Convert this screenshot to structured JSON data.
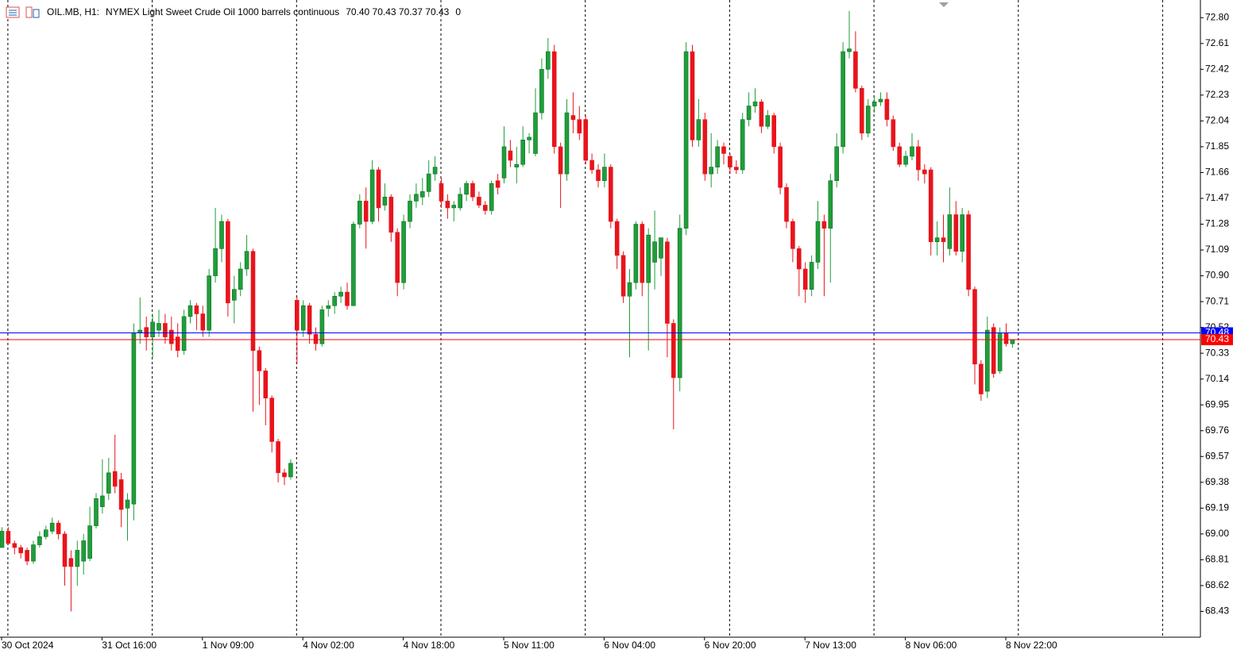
{
  "chart_data": {
    "type": "candlestick",
    "header": {
      "symbol": "OIL.MB, H1:",
      "description": "NYMEX Light Sweet Crude Oil 1000 barrels continuous",
      "ohlc": "70.40 70.43 70.37 70.43",
      "volume": "0"
    },
    "categories": [
      "30 Oct 2024",
      null,
      null,
      null,
      null,
      null,
      null,
      null,
      null,
      null,
      null,
      null,
      null,
      null,
      null,
      null,
      "31 Oct 16:00",
      null,
      null,
      null,
      null,
      null,
      null,
      null,
      null,
      null,
      null,
      null,
      null,
      null,
      null,
      null,
      "1 Nov 09:00",
      null,
      null,
      null,
      null,
      null,
      null,
      null,
      null,
      null,
      null,
      null,
      null,
      null,
      null,
      null,
      "4 Nov 02:00",
      null,
      null,
      null,
      null,
      null,
      null,
      null,
      null,
      null,
      null,
      null,
      null,
      null,
      null,
      null,
      "4 Nov 18:00",
      null,
      null,
      null,
      null,
      null,
      null,
      null,
      null,
      null,
      null,
      null,
      null,
      null,
      null,
      null,
      "5 Nov 11:00",
      null,
      null,
      null,
      null,
      null,
      null,
      null,
      null,
      null,
      null,
      null,
      null,
      null,
      null,
      null,
      "6 Nov 04:00",
      null,
      null,
      null,
      null,
      null,
      null,
      null,
      null,
      null,
      null,
      null,
      null,
      null,
      null,
      null,
      "6 Nov 20:00",
      null,
      null,
      null,
      null,
      null,
      null,
      null,
      null,
      null,
      null,
      null,
      null,
      null,
      null,
      null,
      "7 Nov 13:00",
      null,
      null,
      null,
      null,
      null,
      null,
      null,
      null,
      null,
      null,
      null,
      null,
      null,
      null,
      null,
      "8 Nov 06:00",
      null,
      null,
      null,
      null,
      null,
      null,
      null,
      null,
      null,
      null,
      null,
      null,
      null,
      null,
      null,
      "8 Nov 22:00",
      null
    ],
    "open": [
      68.9,
      69.02,
      68.93,
      68.9,
      68.88,
      68.8,
      68.92,
      68.98,
      69.02,
      69.08,
      69.0,
      68.82,
      68.76,
      68.8,
      68.82,
      69.06,
      69.2,
      69.3,
      69.46,
      69.4,
      69.19,
      69.22,
      70.48,
      70.52,
      70.45,
      70.5,
      70.55,
      70.5,
      70.45,
      70.35,
      70.6,
      70.68,
      70.62,
      70.5,
      70.9,
      71.1,
      71.3,
      70.72,
      70.8,
      70.95,
      71.08,
      70.35,
      70.2,
      70.0,
      69.68,
      69.45,
      69.42,
      70.72,
      70.5,
      70.68,
      70.47,
      70.4,
      70.66,
      70.68,
      70.75,
      70.78,
      70.68,
      71.28,
      71.45,
      71.3,
      71.68,
      71.42,
      71.48,
      71.22,
      70.85,
      71.3,
      71.45,
      71.48,
      71.52,
      71.65,
      71.58,
      71.45,
      71.4,
      71.4,
      71.5,
      71.58,
      71.48,
      71.42,
      71.38,
      71.6,
      71.62,
      71.82,
      71.7,
      71.72,
      71.9,
      71.8,
      72.1,
      72.42,
      72.55,
      71.85,
      71.65,
      72.08,
      72.05,
      72.05,
      71.75,
      71.68,
      71.6,
      71.7,
      71.3,
      71.05,
      70.75,
      70.85,
      71.28,
      70.85,
      71.0,
      71.03,
      71.15,
      70.55,
      70.15,
      71.25,
      72.55,
      71.9,
      72.05,
      71.65,
      71.7,
      71.85,
      71.78,
      71.7,
      71.68,
      72.05,
      72.15,
      72.18,
      72.0,
      72.08,
      71.85,
      71.55,
      71.3,
      71.1,
      70.95,
      70.8,
      71.0,
      71.3,
      71.25,
      71.6,
      71.85,
      72.55,
      72.55,
      72.28,
      71.95,
      72.15,
      72.18,
      72.2,
      72.05,
      71.85,
      71.72,
      71.78,
      71.85,
      71.68,
      71.68,
      71.15,
      71.18,
      71.1,
      71.35,
      71.08,
      71.35,
      70.8,
      70.25,
      70.05,
      70.52,
      70.2,
      70.48,
      70.4
    ],
    "high": [
      69.05,
      69.05,
      68.95,
      68.92,
      68.9,
      68.95,
      69.02,
      69.06,
      69.12,
      69.1,
      69.02,
      68.88,
      68.95,
      69.0,
      69.2,
      69.3,
      69.55,
      69.56,
      69.73,
      69.45,
      69.3,
      70.55,
      70.74,
      70.6,
      70.62,
      70.65,
      70.62,
      70.6,
      70.55,
      70.65,
      70.72,
      70.7,
      70.68,
      70.95,
      71.4,
      71.35,
      71.32,
      70.9,
      71.0,
      71.2,
      71.1,
      70.38,
      70.22,
      70.02,
      69.7,
      69.48,
      69.55,
      70.75,
      70.72,
      70.7,
      70.52,
      70.68,
      70.72,
      70.78,
      70.82,
      70.85,
      71.3,
      71.5,
      71.55,
      71.75,
      71.7,
      71.58,
      71.5,
      71.25,
      71.35,
      71.5,
      71.58,
      71.62,
      71.75,
      71.78,
      71.62,
      71.5,
      71.45,
      71.55,
      71.6,
      71.6,
      71.52,
      71.45,
      71.6,
      71.65,
      72.0,
      71.9,
      71.85,
      72.0,
      71.95,
      72.28,
      72.5,
      72.65,
      72.6,
      71.88,
      72.2,
      72.25,
      72.15,
      72.08,
      71.8,
      71.72,
      71.8,
      71.72,
      71.32,
      71.08,
      70.95,
      71.3,
      71.3,
      71.25,
      71.38,
      71.18,
      71.18,
      70.58,
      71.35,
      72.62,
      72.6,
      72.2,
      72.1,
      71.95,
      71.9,
      71.88,
      71.8,
      71.75,
      72.1,
      72.25,
      72.28,
      72.2,
      72.12,
      72.1,
      71.88,
      71.58,
      71.32,
      71.12,
      71.0,
      71.05,
      71.45,
      71.35,
      71.65,
      71.95,
      72.62,
      72.85,
      72.7,
      72.3,
      72.2,
      72.22,
      72.25,
      72.25,
      72.08,
      71.88,
      71.82,
      71.95,
      71.9,
      71.72,
      71.7,
      71.3,
      71.35,
      71.55,
      71.45,
      71.4,
      71.38,
      70.82,
      70.28,
      70.6,
      70.55,
      70.52,
      70.55,
      70.43
    ],
    "low": [
      68.9,
      68.92,
      68.85,
      68.82,
      68.77,
      68.78,
      68.9,
      68.96,
      69.0,
      68.96,
      68.62,
      68.43,
      68.62,
      68.7,
      68.8,
      69.04,
      69.15,
      69.25,
      69.3,
      69.05,
      68.95,
      69.1,
      70.4,
      70.35,
      70.3,
      70.45,
      70.4,
      70.35,
      70.3,
      70.32,
      70.55,
      70.5,
      70.45,
      70.45,
      70.85,
      71.0,
      70.6,
      70.55,
      70.75,
      70.9,
      69.9,
      69.95,
      69.8,
      69.6,
      69.38,
      69.36,
      69.4,
      70.25,
      70.45,
      70.4,
      70.35,
      70.38,
      70.6,
      70.62,
      70.7,
      70.65,
      70.68,
      71.25,
      71.1,
      71.28,
      71.3,
      71.38,
      71.15,
      70.75,
      70.8,
      71.25,
      71.4,
      71.42,
      71.48,
      71.6,
      71.4,
      71.32,
      71.3,
      71.38,
      71.45,
      71.45,
      71.4,
      71.35,
      71.35,
      71.5,
      71.58,
      71.7,
      71.58,
      71.7,
      71.8,
      71.78,
      72.05,
      72.35,
      71.8,
      71.4,
      71.6,
      71.95,
      71.9,
      71.72,
      71.65,
      71.55,
      71.55,
      71.25,
      70.95,
      70.7,
      70.3,
      70.8,
      70.75,
      70.35,
      70.8,
      70.9,
      70.3,
      69.77,
      70.05,
      71.2,
      71.85,
      71.85,
      71.6,
      71.55,
      71.65,
      71.72,
      71.65,
      71.65,
      71.65,
      72.0,
      72.1,
      71.95,
      71.98,
      71.8,
      71.5,
      71.25,
      71.0,
      70.75,
      70.7,
      70.75,
      70.95,
      70.75,
      70.85,
      71.55,
      71.8,
      72.5,
      72.25,
      71.9,
      71.92,
      72.1,
      72.15,
      72.0,
      71.82,
      71.7,
      71.7,
      71.75,
      71.6,
      71.58,
      71.05,
      71.05,
      71.0,
      71.05,
      71.05,
      71.0,
      70.75,
      70.1,
      69.98,
      70.0,
      70.15,
      70.18,
      70.38,
      70.37
    ],
    "close": [
      69.02,
      68.93,
      68.9,
      68.86,
      68.8,
      68.92,
      68.98,
      69.03,
      69.08,
      69.0,
      68.76,
      68.76,
      68.88,
      68.95,
      69.06,
      69.26,
      69.28,
      69.45,
      69.35,
      69.18,
      69.25,
      70.48,
      70.5,
      70.45,
      70.56,
      70.55,
      70.45,
      70.4,
      70.35,
      70.6,
      70.68,
      70.62,
      70.5,
      70.9,
      71.1,
      71.3,
      70.7,
      70.8,
      70.95,
      71.08,
      70.35,
      70.2,
      70.0,
      69.68,
      69.45,
      69.42,
      69.52,
      70.5,
      70.68,
      70.47,
      70.4,
      70.65,
      70.68,
      70.75,
      70.78,
      70.68,
      71.28,
      71.45,
      71.3,
      71.68,
      71.4,
      71.48,
      71.22,
      70.85,
      71.3,
      71.45,
      71.5,
      71.52,
      71.65,
      71.7,
      71.45,
      71.4,
      71.42,
      71.5,
      71.58,
      71.48,
      71.42,
      71.38,
      71.58,
      71.55,
      71.85,
      71.75,
      71.72,
      71.9,
      71.92,
      72.1,
      72.42,
      72.55,
      71.85,
      71.65,
      72.1,
      72.05,
      71.95,
      71.75,
      71.68,
      71.6,
      71.7,
      71.3,
      71.05,
      70.75,
      70.85,
      71.28,
      70.85,
      71.2,
      71.15,
      71.18,
      70.55,
      70.15,
      71.25,
      72.55,
      71.9,
      72.05,
      71.65,
      71.7,
      71.85,
      71.8,
      71.7,
      71.68,
      72.05,
      72.15,
      72.18,
      72.0,
      72.08,
      71.85,
      71.55,
      71.3,
      71.1,
      70.95,
      70.8,
      71.0,
      71.3,
      71.25,
      71.6,
      71.85,
      72.55,
      72.57,
      72.28,
      71.95,
      72.15,
      72.18,
      72.2,
      72.05,
      71.85,
      71.72,
      71.78,
      71.85,
      71.68,
      71.65,
      71.15,
      71.18,
      71.15,
      71.35,
      71.08,
      71.35,
      70.8,
      70.25,
      70.03,
      70.5,
      70.18,
      70.48,
      70.4,
      70.43
    ],
    "up_color": "#1f9e3a",
    "down_color": "#e8141c",
    "ylim": [
      68.24,
      72.93
    ],
    "yticks": [
      {
        "value": 72.8,
        "label": "72.80"
      },
      72.61,
      72.42,
      72.23,
      72.04,
      71.85,
      71.66,
      71.47,
      71.28,
      71.09,
      {
        "value": 70.9,
        "label": "70.90"
      },
      70.71,
      70.52,
      70.33,
      70.14,
      69.95,
      69.76,
      69.57,
      69.38,
      69.19,
      {
        "value": 69,
        "label": "69.00"
      },
      68.81,
      68.62,
      68.43
    ],
    "price_lines": [
      {
        "value": 70.48,
        "color": "#0000ff"
      },
      {
        "value": 70.43,
        "color": "#ff0000"
      }
    ],
    "period_separators": true
  }
}
